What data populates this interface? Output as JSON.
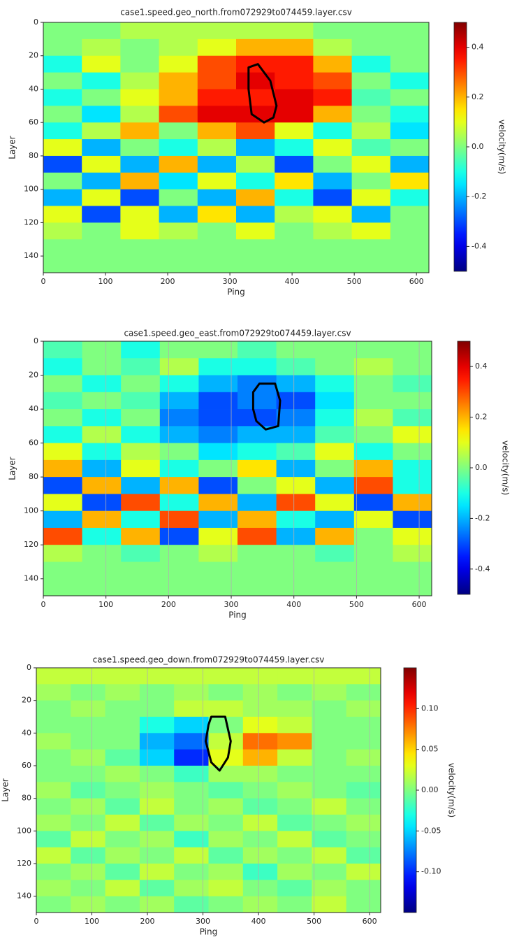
{
  "chart_data": [
    {
      "type": "heatmap",
      "title": "case1.speed.geo_north.from072929to074459.layer.csv",
      "x_label": "Ping",
      "y_label": "Layer",
      "colorbar_label": "velocity(m/s)",
      "x": [
        31,
        93,
        155,
        217,
        279,
        341,
        403,
        465,
        527,
        589
      ],
      "y": [
        5,
        15,
        25,
        35,
        45,
        55,
        65,
        75,
        85,
        95,
        105,
        115,
        125,
        135,
        145
      ],
      "z": [
        [
          0,
          0,
          0.05,
          0.05,
          0.05,
          0.05,
          0.05,
          0,
          0,
          0
        ],
        [
          0,
          0.05,
          0,
          0.05,
          0.1,
          0.2,
          0.2,
          0.05,
          0,
          0
        ],
        [
          -0.1,
          0.1,
          0,
          0.1,
          0.3,
          0.35,
          0.35,
          0.2,
          -0.1,
          0
        ],
        [
          0,
          -0.1,
          0.05,
          0.2,
          0.3,
          0.4,
          0.35,
          0.3,
          0,
          -0.1
        ],
        [
          -0.1,
          0,
          0.1,
          0.2,
          0.35,
          0.35,
          0.4,
          0.35,
          -0.05,
          0
        ],
        [
          0,
          -0.15,
          0.05,
          0.3,
          0.4,
          0.4,
          0.4,
          0.2,
          0,
          -0.1
        ],
        [
          -0.1,
          0.05,
          0.2,
          0,
          0.2,
          0.3,
          0.1,
          -0.1,
          0.05,
          -0.15
        ],
        [
          0.1,
          -0.2,
          0,
          -0.1,
          0.05,
          -0.2,
          -0.1,
          0.1,
          -0.05,
          0
        ],
        [
          -0.3,
          0.1,
          -0.2,
          0.2,
          -0.2,
          0.05,
          -0.3,
          0,
          0.1,
          -0.2
        ],
        [
          0,
          -0.2,
          0.2,
          -0.15,
          0.1,
          -0.1,
          0.15,
          -0.2,
          0,
          0.15
        ],
        [
          -0.2,
          0.1,
          -0.3,
          0,
          -0.2,
          0.2,
          -0.1,
          -0.3,
          0.1,
          -0.1
        ],
        [
          0.1,
          -0.3,
          0.1,
          -0.2,
          0.15,
          -0.2,
          0.05,
          0.1,
          -0.2,
          0
        ],
        [
          0.05,
          0,
          0.1,
          0.05,
          0,
          0.1,
          0,
          0.05,
          0.1,
          0
        ],
        [
          0,
          0,
          0,
          0,
          0,
          0,
          0,
          0,
          0,
          0
        ],
        [
          0,
          0,
          0,
          0,
          0,
          0,
          0,
          0,
          0,
          0
        ]
      ],
      "outline": {
        "x": [
          330,
          345,
          365,
          375,
          370,
          355,
          335,
          330
        ],
        "y": [
          27,
          25,
          35,
          50,
          57,
          60,
          55,
          40
        ]
      },
      "xlim": [
        0,
        620
      ],
      "ylim": [
        150,
        0
      ],
      "xticks": [
        0,
        100,
        200,
        300,
        400,
        500,
        600
      ],
      "yticks": [
        0,
        20,
        40,
        60,
        80,
        100,
        120,
        140
      ],
      "clim": [
        -0.5,
        0.5
      ],
      "cticks": [
        -0.4,
        -0.2,
        {
          "value": 0,
          "label": "0.0"
        },
        0.2,
        0.4
      ],
      "grid": false
    },
    {
      "type": "heatmap",
      "title": "case1.speed.geo_east.from072929to074459.layer.csv",
      "x_label": "Ping",
      "y_label": "Layer",
      "colorbar_label": "velocity(m/s)",
      "x": [
        31,
        93,
        155,
        217,
        279,
        341,
        403,
        465,
        527,
        589
      ],
      "y": [
        5,
        15,
        25,
        35,
        45,
        55,
        65,
        75,
        85,
        95,
        105,
        115,
        125,
        135,
        145
      ],
      "z": [
        [
          -0.05,
          0,
          -0.1,
          0,
          0,
          -0.05,
          0,
          0,
          0,
          0
        ],
        [
          -0.1,
          0,
          -0.05,
          0.05,
          -0.1,
          -0.1,
          -0.05,
          0,
          0.05,
          0
        ],
        [
          0,
          -0.1,
          0,
          -0.1,
          -0.2,
          -0.25,
          -0.2,
          -0.1,
          0,
          -0.05
        ],
        [
          -0.05,
          0,
          -0.05,
          -0.2,
          -0.3,
          -0.25,
          -0.3,
          -0.15,
          0,
          0
        ],
        [
          0,
          -0.1,
          0,
          -0.25,
          -0.3,
          -0.3,
          -0.25,
          -0.1,
          0.05,
          -0.05
        ],
        [
          -0.1,
          0.05,
          -0.1,
          -0.2,
          -0.25,
          -0.2,
          -0.2,
          -0.05,
          0,
          0.1
        ],
        [
          0.1,
          -0.1,
          0.05,
          0,
          -0.15,
          -0.1,
          -0.05,
          0.1,
          -0.1,
          0
        ],
        [
          0.2,
          -0.2,
          0.1,
          -0.1,
          0,
          0.15,
          -0.2,
          0,
          0.2,
          -0.1
        ],
        [
          -0.3,
          0.2,
          -0.2,
          0.2,
          -0.3,
          0,
          0.1,
          -0.2,
          0.3,
          -0.1
        ],
        [
          0.1,
          -0.3,
          0.3,
          -0.1,
          0.2,
          -0.2,
          0.3,
          0.1,
          -0.3,
          0.2
        ],
        [
          -0.2,
          0.2,
          -0.1,
          0.3,
          -0.2,
          0.2,
          -0.1,
          -0.2,
          0.1,
          -0.3
        ],
        [
          0.3,
          -0.1,
          0.2,
          -0.3,
          0.1,
          0.3,
          -0.2,
          0.2,
          0,
          0.1
        ],
        [
          0.05,
          0,
          -0.05,
          0,
          0.05,
          0,
          0,
          -0.05,
          0,
          0.05
        ],
        [
          0,
          0,
          0,
          0,
          0,
          0,
          0,
          0,
          0,
          0
        ],
        [
          0,
          0,
          0,
          0,
          0,
          0,
          0,
          0,
          0,
          0
        ]
      ],
      "outline": {
        "x": [
          335,
          345,
          370,
          378,
          375,
          355,
          340,
          335
        ],
        "y": [
          30,
          25,
          25,
          35,
          50,
          52,
          47,
          40
        ]
      },
      "xlim": [
        0,
        620
      ],
      "ylim": [
        150,
        0
      ],
      "xticks": [
        0,
        100,
        200,
        300,
        400,
        500,
        600
      ],
      "yticks": [
        0,
        20,
        40,
        60,
        80,
        100,
        120,
        140
      ],
      "clim": [
        -0.5,
        0.5
      ],
      "cticks": [
        -0.4,
        -0.2,
        {
          "value": 0,
          "label": "0.0"
        },
        0.2,
        0.4
      ],
      "grid": true
    },
    {
      "type": "heatmap",
      "title": "case1.speed.geo_down.from072929to074459.layer.csv",
      "x_label": "Ping",
      "y_label": "Layer",
      "colorbar_label": "velocity(m/s)",
      "x": [
        31,
        93,
        155,
        217,
        279,
        341,
        403,
        465,
        527,
        589
      ],
      "y": [
        5,
        15,
        25,
        35,
        45,
        55,
        65,
        75,
        85,
        95,
        105,
        115,
        125,
        135,
        145
      ],
      "z": [
        [
          0.02,
          0.02,
          0.02,
          0.02,
          0.02,
          0.02,
          0.02,
          0.02,
          0.02,
          0.02
        ],
        [
          0.01,
          0,
          0.01,
          0,
          0.01,
          0,
          0.01,
          0,
          0.01,
          0
        ],
        [
          0,
          0.01,
          0,
          0,
          0.02,
          0.02,
          0.01,
          0.01,
          0,
          0.01
        ],
        [
          0,
          0,
          0,
          -0.03,
          -0.05,
          0,
          0.03,
          0.02,
          0,
          0
        ],
        [
          0.01,
          0,
          0,
          -0.06,
          -0.08,
          0.02,
          0.08,
          0.07,
          0,
          0
        ],
        [
          0,
          0.01,
          -0.01,
          -0.05,
          -0.1,
          0.03,
          0.06,
          0.02,
          0,
          0.01
        ],
        [
          0,
          0,
          0.01,
          0,
          -0.02,
          0.01,
          0.01,
          0,
          0,
          0
        ],
        [
          0.01,
          -0.01,
          0,
          0.01,
          0,
          -0.01,
          0,
          0.01,
          0,
          -0.01
        ],
        [
          0,
          0.01,
          -0.01,
          0.02,
          0,
          0.01,
          -0.01,
          0,
          0.02,
          0
        ],
        [
          0.01,
          0,
          0.02,
          -0.01,
          0.01,
          0,
          0.02,
          -0.01,
          0,
          0.01
        ],
        [
          -0.01,
          0.02,
          0,
          0.01,
          -0.02,
          0.01,
          0,
          0.02,
          -0.01,
          0
        ],
        [
          0.02,
          -0.01,
          0.01,
          0,
          0.02,
          -0.01,
          0.01,
          0,
          0.02,
          -0.01
        ],
        [
          0,
          0.01,
          -0.01,
          0.02,
          0,
          0.01,
          -0.02,
          0.01,
          0,
          0.02
        ],
        [
          0.01,
          0,
          0.02,
          -0.01,
          0.01,
          0.02,
          0,
          -0.01,
          0.01,
          0
        ],
        [
          0,
          0.01,
          0,
          0.01,
          -0.01,
          0,
          0.01,
          0,
          0.02,
          0
        ]
      ],
      "outline": {
        "x": [
          315,
          340,
          350,
          345,
          330,
          315,
          305,
          310
        ],
        "y": [
          30,
          30,
          45,
          55,
          63,
          58,
          45,
          35
        ]
      },
      "xlim": [
        0,
        620
      ],
      "ylim": [
        150,
        0
      ],
      "xticks": [
        0,
        100,
        200,
        300,
        400,
        500,
        600
      ],
      "yticks": [
        0,
        20,
        40,
        60,
        80,
        100,
        120,
        140
      ],
      "clim": [
        -0.15,
        0.15
      ],
      "cticks": [
        {
          "value": -0.1,
          "label": "-0.10"
        },
        {
          "value": -0.05,
          "label": "-0.05"
        },
        {
          "value": 0,
          "label": "0.00"
        },
        {
          "value": 0.05,
          "label": "0.05"
        },
        {
          "value": 0.1,
          "label": "0.10"
        }
      ],
      "grid": true
    }
  ]
}
